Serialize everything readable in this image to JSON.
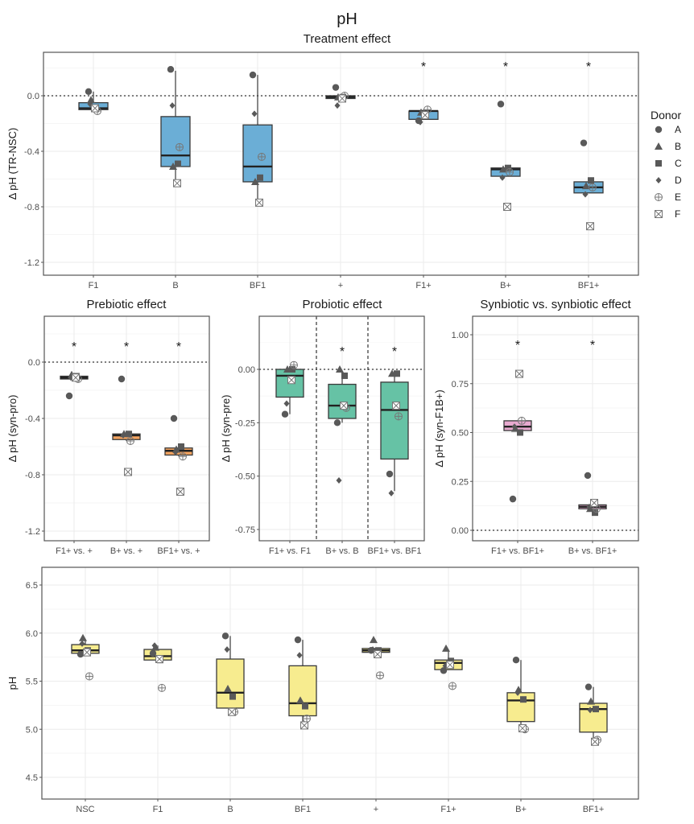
{
  "figure": {
    "title": "pH",
    "legend": {
      "title": "Donor",
      "placement": "right",
      "entries": [
        {
          "label": "A",
          "shape": "circle"
        },
        {
          "label": "B",
          "shape": "triangle"
        },
        {
          "label": "C",
          "shape": "square"
        },
        {
          "label": "D",
          "shape": "diamond"
        },
        {
          "label": "E",
          "shape": "circle-plus"
        },
        {
          "label": "F",
          "shape": "square-x"
        }
      ]
    },
    "significance_marker": "*"
  },
  "chart_data": [
    {
      "id": "treatment",
      "type": "box",
      "title": "Treatment effect",
      "xlabel": "",
      "ylabel": "Δ pH (TR-NSC)",
      "ylim": [
        -1.3,
        0.3
      ],
      "yticks": [
        0.0,
        -0.4,
        -0.8,
        -1.2
      ],
      "ytick_labels": [
        "0.0",
        "-0.4",
        "-0.8",
        "-1.2"
      ],
      "reference_line": 0.0,
      "fill": "#6baed6",
      "categories": [
        "F1",
        "B",
        "BF1",
        "+",
        "F1+",
        "B+",
        "BF1+"
      ],
      "significant": [
        false,
        false,
        false,
        false,
        true,
        true,
        true
      ],
      "boxes": [
        {
          "q1": -0.1,
          "median": -0.09,
          "q3": -0.05,
          "whisker_low": -0.1,
          "whisker_high": 0.03
        },
        {
          "q1": -0.51,
          "median": -0.43,
          "q3": -0.15,
          "whisker_low": -0.63,
          "whisker_high": 0.18
        },
        {
          "q1": -0.62,
          "median": -0.51,
          "q3": -0.21,
          "whisker_low": -0.77,
          "whisker_high": 0.15
        },
        {
          "q1": -0.02,
          "median": -0.01,
          "q3": 0.0,
          "whisker_low": -0.02,
          "whisker_high": 0.01
        },
        {
          "q1": -0.17,
          "median": -0.11,
          "q3": -0.11,
          "whisker_low": -0.17,
          "whisker_high": -0.1
        },
        {
          "q1": -0.58,
          "median": -0.53,
          "q3": -0.52,
          "whisker_low": -0.58,
          "whisker_high": -0.52
        },
        {
          "q1": -0.7,
          "median": -0.66,
          "q3": -0.62,
          "whisker_low": -0.7,
          "whisker_high": -0.61
        }
      ],
      "points": {
        "A": [
          0.03,
          0.19,
          0.15,
          0.06,
          -0.18,
          -0.06,
          -0.34
        ],
        "B": [
          -0.03,
          -0.51,
          -0.62,
          -0.01,
          -0.12,
          -0.53,
          -0.65
        ],
        "C": [
          -0.09,
          -0.49,
          -0.59,
          -0.01,
          -0.13,
          -0.52,
          -0.61
        ],
        "D": [
          -0.06,
          -0.07,
          -0.13,
          -0.07,
          -0.19,
          -0.59,
          -0.71
        ],
        "E": [
          -0.11,
          -0.37,
          -0.44,
          0.0,
          -0.1,
          -0.55,
          -0.66
        ],
        "F": [
          -0.09,
          -0.63,
          -0.77,
          -0.02,
          -0.14,
          -0.8,
          -0.94
        ]
      }
    },
    {
      "id": "prebiotic",
      "type": "box",
      "title": "Prebiotic effect",
      "ylabel": "Δ pH (syn-pro)",
      "ylim": [
        -1.3,
        0.33
      ],
      "yticks": [
        0.0,
        -0.4,
        -0.8,
        -1.2
      ],
      "ytick_labels": [
        "0.0",
        "-0.4",
        "-0.8",
        "-1.2"
      ],
      "reference_line": 0.0,
      "fill": "#f4a460",
      "categories": [
        "F1+ vs. +",
        "B+ vs. +",
        "BF1+ vs. +"
      ],
      "significant": [
        true,
        true,
        true
      ],
      "boxes": [
        {
          "q1": -0.12,
          "median": -0.11,
          "q3": -0.1,
          "whisker_low": -0.12,
          "whisker_high": -0.09
        },
        {
          "q1": -0.55,
          "median": -0.52,
          "q3": -0.51,
          "whisker_low": -0.56,
          "whisker_high": -0.5
        },
        {
          "q1": -0.66,
          "median": -0.63,
          "q3": -0.61,
          "whisker_low": -0.67,
          "whisker_high": -0.59
        }
      ],
      "points": {
        "A": [
          -0.24,
          -0.12,
          -0.4
        ],
        "B": [
          -0.09,
          -0.51,
          -0.62
        ],
        "C": [
          -0.1,
          -0.51,
          -0.6
        ],
        "D": [
          -0.11,
          -0.52,
          -0.64
        ],
        "E": [
          -0.12,
          -0.56,
          -0.67
        ],
        "F": [
          -0.11,
          -0.78,
          -0.92
        ]
      }
    },
    {
      "id": "probiotic",
      "type": "box",
      "title": "Probiotic effect",
      "ylabel": "Δ pH (syn-pre)",
      "ylim": [
        -0.8,
        0.22
      ],
      "yticks": [
        0.0,
        -0.25,
        -0.5,
        -0.75
      ],
      "ytick_labels": [
        "0.00",
        "-0.25",
        "-0.50",
        "-0.75"
      ],
      "reference_line": 0.0,
      "fill": "#66c2a5",
      "separators": true,
      "categories": [
        "F1+ vs. F1",
        "B+ vs. B",
        "BF1+ vs. BF1"
      ],
      "significant": [
        false,
        true,
        true
      ],
      "boxes": [
        {
          "q1": -0.13,
          "median": -0.03,
          "q3": 0.0,
          "whisker_low": -0.21,
          "whisker_high": 0.0
        },
        {
          "q1": -0.23,
          "median": -0.17,
          "q3": -0.07,
          "whisker_low": -0.25,
          "whisker_high": -0.01
        },
        {
          "q1": -0.42,
          "median": -0.19,
          "q3": -0.06,
          "whisker_low": -0.57,
          "whisker_high": -0.02
        }
      ],
      "points": {
        "A": [
          -0.21,
          -0.25,
          -0.49
        ],
        "B": [
          0.0,
          0.0,
          -0.02
        ],
        "C": [
          0.0,
          -0.03,
          -0.02
        ],
        "D": [
          -0.16,
          -0.52,
          -0.58
        ],
        "E": [
          0.02,
          -0.18,
          -0.22
        ],
        "F": [
          -0.05,
          -0.17,
          -0.17
        ]
      }
    },
    {
      "id": "synbiotic",
      "type": "box",
      "title": "Synbiotic vs. synbiotic effect",
      "ylabel": "Δ pH (syn-F1B+)",
      "ylim": [
        -0.05,
        1.1
      ],
      "yticks": [
        1.0,
        0.75,
        0.5,
        0.25,
        0.0
      ],
      "ytick_labels": [
        "1.00",
        "0.75",
        "0.50",
        "0.25",
        "0.00"
      ],
      "reference_line": 0.0,
      "fill": "#e7a9cf",
      "categories": [
        "F1+ vs. BF1+",
        "B+ vs. BF1+"
      ],
      "significant": [
        true,
        true
      ],
      "boxes": [
        {
          "q1": 0.51,
          "median": 0.53,
          "q3": 0.56,
          "whisker_low": 0.5,
          "whisker_high": 0.56
        },
        {
          "q1": 0.11,
          "median": 0.12,
          "q3": 0.13,
          "whisker_low": 0.09,
          "whisker_high": 0.14
        }
      ],
      "points": {
        "A": [
          0.16,
          0.28
        ],
        "B": [
          0.52,
          0.11
        ],
        "C": [
          0.5,
          0.09
        ],
        "D": [
          0.53,
          0.12
        ],
        "E": [
          0.56,
          0.11
        ],
        "F": [
          0.8,
          0.14
        ]
      }
    },
    {
      "id": "absolute",
      "type": "box",
      "title": "",
      "ylabel": "pH",
      "ylim": [
        4.3,
        6.65
      ],
      "yticks": [
        6.5,
        6.0,
        5.5,
        5.0,
        4.5
      ],
      "ytick_labels": [
        "6.5",
        "6.0",
        "5.5",
        "5.0",
        "4.5"
      ],
      "fill": "#f7ec8f",
      "categories": [
        "NSC",
        "F1",
        "B",
        "BF1",
        "+",
        "F1+",
        "B+",
        "BF1+"
      ],
      "boxes": [
        {
          "q1": 5.79,
          "median": 5.82,
          "q3": 5.88,
          "whisker_low": 5.78,
          "whisker_high": 5.94
        },
        {
          "q1": 5.72,
          "median": 5.76,
          "q3": 5.83,
          "whisker_low": 5.72,
          "whisker_high": 5.87
        },
        {
          "q1": 5.22,
          "median": 5.38,
          "q3": 5.73,
          "whisker_low": 5.18,
          "whisker_high": 5.97
        },
        {
          "q1": 5.14,
          "median": 5.27,
          "q3": 5.66,
          "whisker_low": 5.04,
          "whisker_high": 5.93
        },
        {
          "q1": 5.8,
          "median": 5.82,
          "q3": 5.84,
          "whisker_low": 5.8,
          "whisker_high": 5.84
        },
        {
          "q1": 5.62,
          "median": 5.69,
          "q3": 5.72,
          "whisker_low": 5.62,
          "whisker_high": 5.83
        },
        {
          "q1": 5.08,
          "median": 5.3,
          "q3": 5.38,
          "whisker_low": 5.01,
          "whisker_high": 5.72
        },
        {
          "q1": 4.97,
          "median": 5.21,
          "q3": 5.27,
          "whisker_low": 4.87,
          "whisker_high": 5.44
        }
      ],
      "points": {
        "A": [
          5.78,
          5.79,
          5.97,
          5.93,
          5.82,
          5.61,
          5.72,
          5.44
        ],
        "B": [
          5.95,
          5.85,
          5.42,
          5.3,
          5.93,
          5.84,
          5.41,
          5.29
        ],
        "C": [
          5.82,
          5.72,
          5.34,
          5.24,
          5.82,
          5.71,
          5.31,
          5.21
        ],
        "D": [
          5.89,
          5.87,
          5.83,
          5.77,
          5.83,
          5.66,
          5.38,
          5.2
        ],
        "E": [
          5.55,
          5.43,
          5.18,
          5.11,
          5.56,
          5.45,
          5.0,
          4.89
        ],
        "F": [
          5.8,
          5.73,
          5.18,
          5.04,
          5.78,
          5.67,
          5.01,
          4.87
        ]
      }
    }
  ]
}
